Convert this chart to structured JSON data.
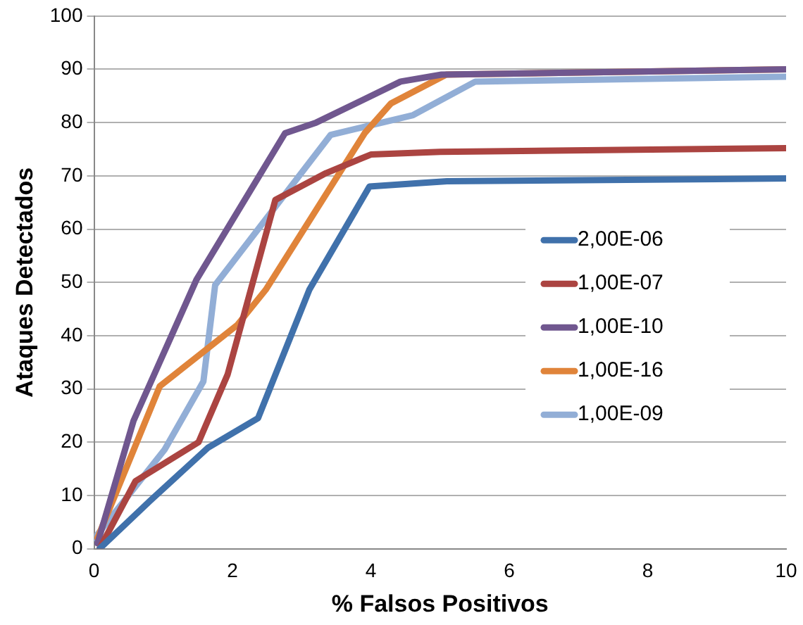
{
  "chart_data": {
    "type": "line",
    "xlabel": "% Falsos Positivos",
    "ylabel": "Ataques Detectados",
    "xlim": [
      0,
      10
    ],
    "xticks": [
      0,
      2,
      4,
      6,
      8,
      10
    ],
    "ylim": [
      0,
      100
    ],
    "yticks": [
      0,
      10,
      20,
      30,
      40,
      50,
      60,
      70,
      80,
      90,
      100
    ],
    "grid": "y",
    "legend": "right",
    "marker": "none",
    "line_style": "solid",
    "series": [
      {
        "name": "2,00E-06",
        "color": "#4071ab",
        "x": [
          0.08,
          0.81,
          1.65,
          2.37,
          3.11,
          3.98,
          5.1,
          10
        ],
        "values": [
          0,
          9,
          19,
          24.5,
          48.6,
          68,
          69,
          69.5
        ]
      },
      {
        "name": "1,00E-07",
        "color": "#ab4441",
        "x": [
          0.08,
          0.6,
          1.51,
          1.93,
          2.62,
          3.35,
          4.0,
          5.0,
          10
        ],
        "values": [
          0,
          12.7,
          20,
          32.7,
          65.5,
          70.5,
          74,
          74.5,
          75.2
        ]
      },
      {
        "name": "1,00E-10",
        "color": "#70578f",
        "x": [
          0.05,
          0.57,
          1.48,
          2.76,
          3.21,
          4.43,
          5.02,
          10
        ],
        "values": [
          1,
          24,
          50.5,
          78,
          80,
          87.7,
          89,
          90
        ]
      },
      {
        "name": "1,00E-16",
        "color": "#e0843a",
        "x": [
          0.05,
          0.95,
          2.07,
          2.48,
          3.91,
          4.29,
          5.09,
          10
        ],
        "values": [
          2,
          30.5,
          42,
          48.6,
          78,
          83.6,
          89,
          90
        ]
      },
      {
        "name": "1,00E-09",
        "color": "#92aed6",
        "x": [
          0.01,
          1.02,
          1.58,
          1.75,
          3.42,
          4.61,
          5.51,
          10
        ],
        "values": [
          2,
          18.6,
          31.4,
          49.5,
          77.7,
          81.4,
          87.7,
          88.6
        ]
      }
    ]
  }
}
